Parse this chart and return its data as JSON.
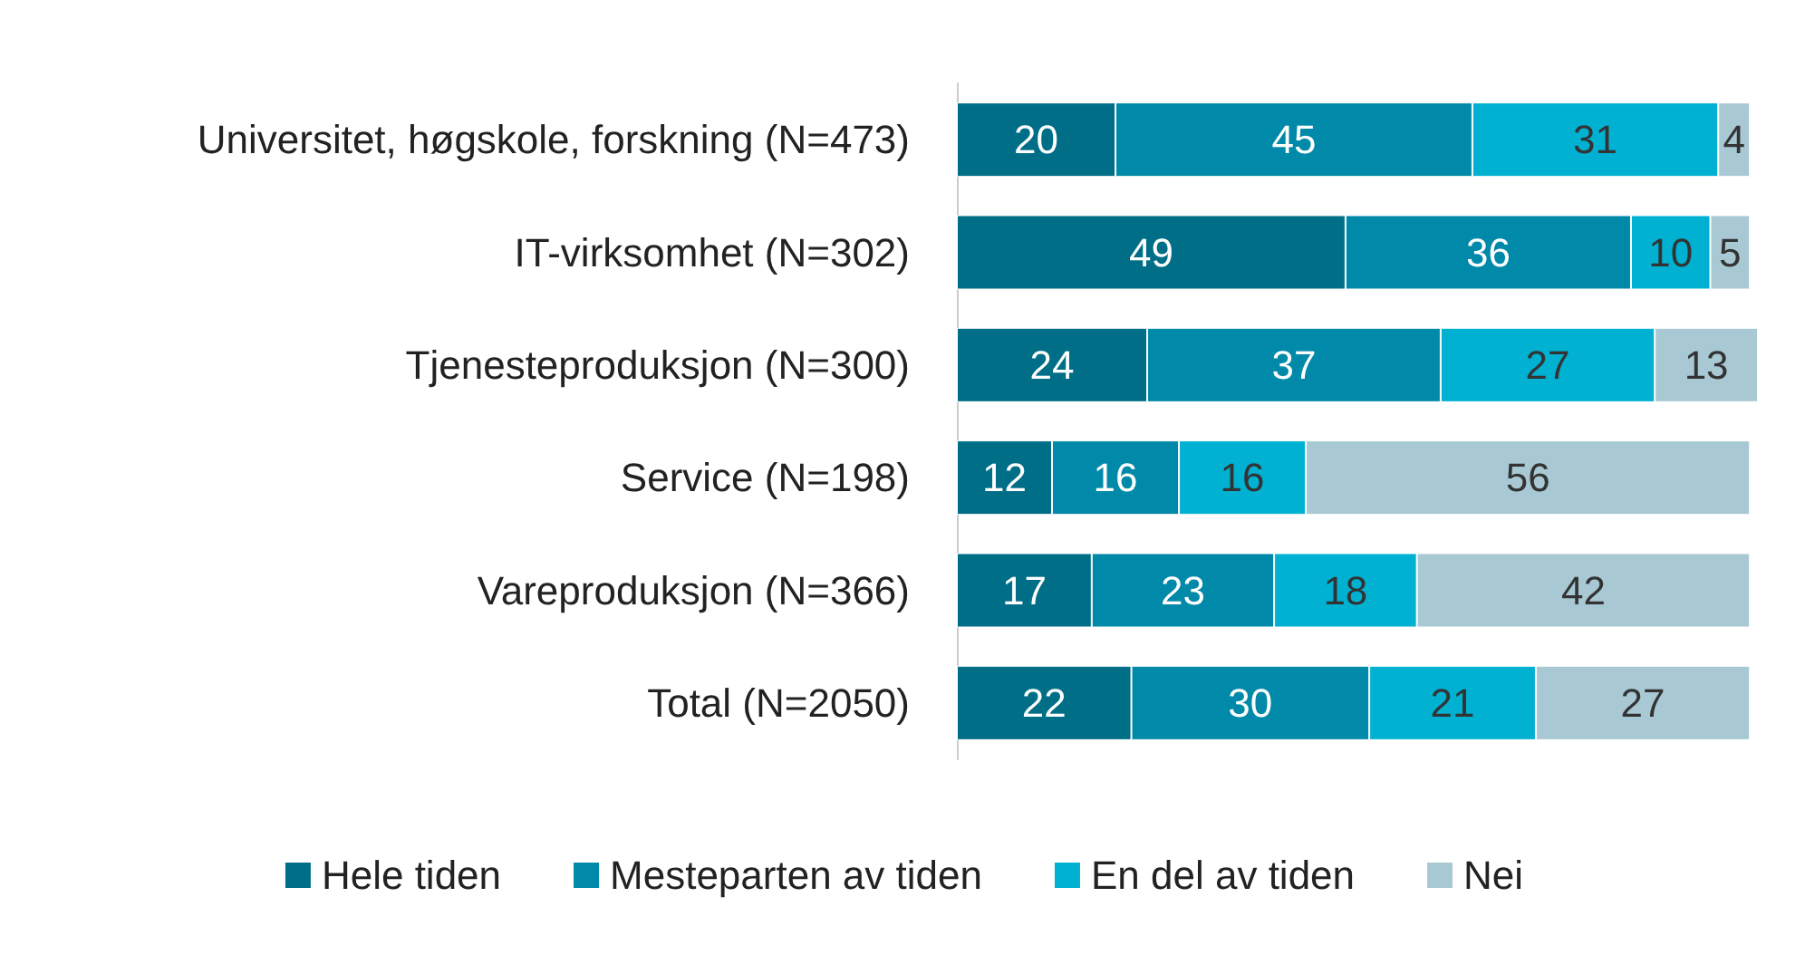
{
  "chart_data": {
    "type": "bar",
    "orientation": "horizontal",
    "stacked": true,
    "data_labels": true,
    "legend": "bottom",
    "grid": false,
    "tick_labels": "y",
    "categories": [
      "Universitet, høgskole, forskning (N=473)",
      "IT-virksomhet (N=302)",
      "Tjenesteproduksjon (N=300)",
      "Service (N=198)",
      "Vareproduksjon (N=366)",
      "Total (N=2050)"
    ],
    "series": [
      {
        "name": "Hele tiden",
        "color": "#006e87",
        "values": [
          20,
          49,
          24,
          12,
          17,
          22
        ]
      },
      {
        "name": "Mesteparten av tiden",
        "color": "#0089a8",
        "values": [
          45,
          36,
          37,
          16,
          23,
          30
        ]
      },
      {
        "name": "En del av tiden",
        "color": "#00b1d2",
        "values": [
          31,
          10,
          27,
          16,
          18,
          21
        ]
      },
      {
        "name": "Nei",
        "color": "#a8c9d4",
        "values": [
          4,
          5,
          13,
          56,
          42,
          27
        ]
      }
    ]
  }
}
